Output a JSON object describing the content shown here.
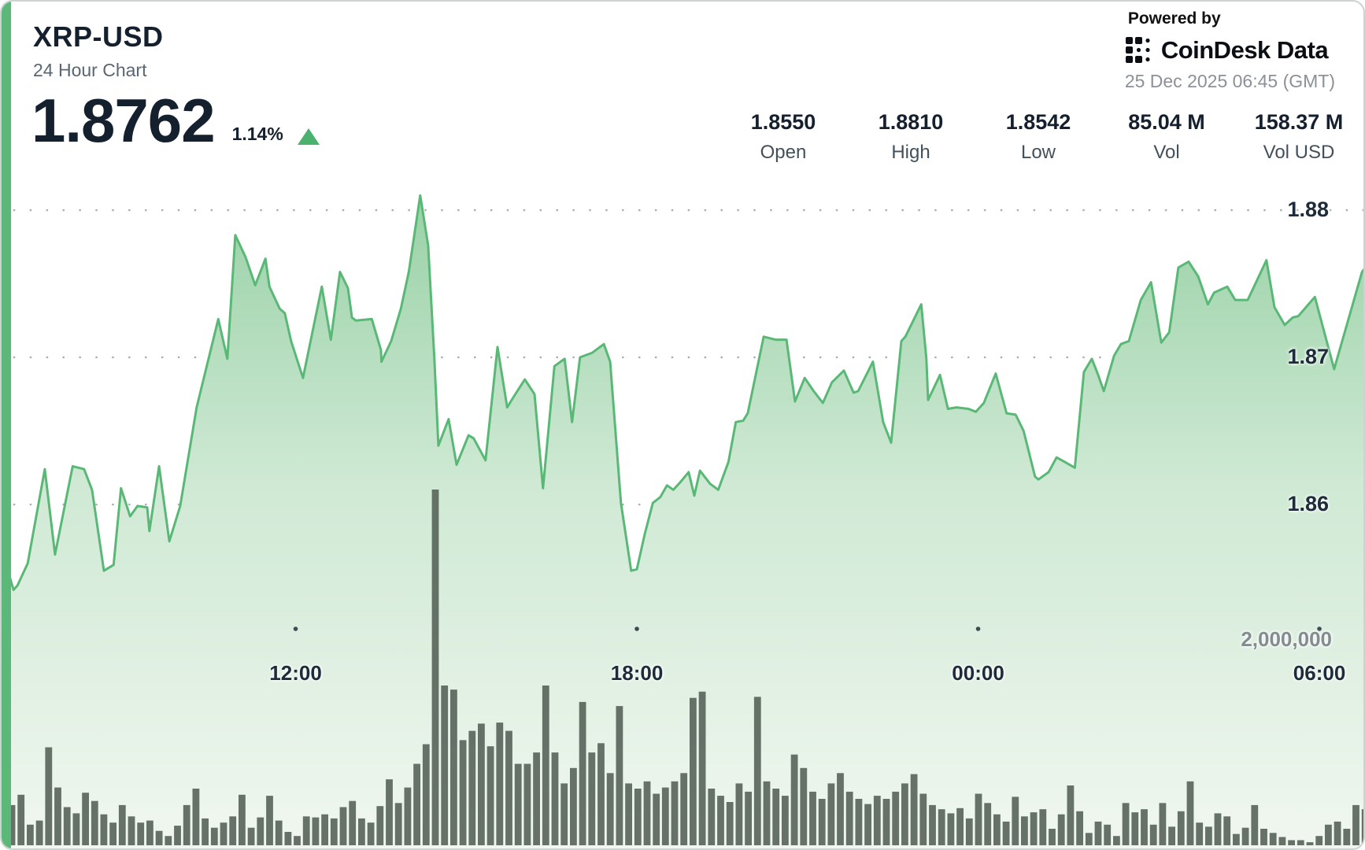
{
  "header": {
    "symbol": "XRP-USD",
    "subtitle": "24 Hour Chart",
    "price": "1.8762",
    "change_percent": "1.14%",
    "change_direction": "up"
  },
  "provider": {
    "powered_by": "Powered by",
    "name": "CoinDesk Data",
    "timestamp": "25 Dec 2025 06:45 (GMT)"
  },
  "stats": [
    {
      "value": "1.8550",
      "label": "Open"
    },
    {
      "value": "1.8810",
      "label": "High"
    },
    {
      "value": "1.8542",
      "label": "Low"
    },
    {
      "value": "85.04 M",
      "label": "Vol"
    },
    {
      "value": "158.37 M",
      "label": "Vol USD"
    }
  ],
  "chart_data": {
    "type": "area+bar",
    "title": "XRP-USD 24 Hour Chart",
    "x_axis": {
      "unit": "time",
      "span_hours": 24,
      "tick_labels": [
        "12:00",
        "18:00",
        "00:00",
        "06:00"
      ],
      "tick_hours": [
        5.17,
        11.17,
        17.17,
        23.17
      ]
    },
    "price_axis": {
      "gridlines": [
        1.88,
        1.87,
        1.86
      ],
      "labels": [
        "1.88",
        "1.87",
        "1.86"
      ]
    },
    "volume_axis": {
      "gridline_millions": 2,
      "label": "2,000,000"
    },
    "open": 1.855,
    "high": 1.881,
    "low": 1.8542,
    "last": 1.8762,
    "volume": "85.04 M",
    "volume_usd": "158.37 M",
    "legend": "none",
    "grid": "dotted",
    "price_points": [
      [
        0.15,
        1.855
      ],
      [
        0.21,
        1.8542
      ],
      [
        0.28,
        1.8545
      ],
      [
        0.46,
        1.856
      ],
      [
        0.76,
        1.8624
      ],
      [
        0.94,
        1.8566
      ],
      [
        1.25,
        1.8626
      ],
      [
        1.45,
        1.8624
      ],
      [
        1.59,
        1.861
      ],
      [
        1.8,
        1.8555
      ],
      [
        1.97,
        1.8559
      ],
      [
        2.1,
        1.8611
      ],
      [
        2.26,
        1.8592
      ],
      [
        2.39,
        1.8599
      ],
      [
        2.56,
        1.8598
      ],
      [
        2.6,
        1.8582
      ],
      [
        2.77,
        1.8626
      ],
      [
        2.95,
        1.8575
      ],
      [
        3.14,
        1.8599
      ],
      [
        3.43,
        1.8666
      ],
      [
        3.81,
        1.8726
      ],
      [
        3.97,
        1.8699
      ],
      [
        4.11,
        1.8783
      ],
      [
        4.29,
        1.8768
      ],
      [
        4.46,
        1.8749
      ],
      [
        4.64,
        1.8767
      ],
      [
        4.71,
        1.8748
      ],
      [
        4.89,
        1.8733
      ],
      [
        4.98,
        1.873
      ],
      [
        5.09,
        1.8711
      ],
      [
        5.3,
        1.8686
      ],
      [
        5.63,
        1.8748
      ],
      [
        5.79,
        1.8712
      ],
      [
        5.95,
        1.8758
      ],
      [
        6.09,
        1.8747
      ],
      [
        6.16,
        1.8727
      ],
      [
        6.23,
        1.8725
      ],
      [
        6.51,
        1.8726
      ],
      [
        6.67,
        1.8705
      ],
      [
        6.68,
        1.8697
      ],
      [
        6.85,
        1.8711
      ],
      [
        7.02,
        1.8733
      ],
      [
        7.16,
        1.8758
      ],
      [
        7.36,
        1.881
      ],
      [
        7.5,
        1.8776
      ],
      [
        7.61,
        1.8699
      ],
      [
        7.68,
        1.864
      ],
      [
        7.86,
        1.8658
      ],
      [
        8.0,
        1.8627
      ],
      [
        8.21,
        1.8647
      ],
      [
        8.3,
        1.8645
      ],
      [
        8.51,
        1.863
      ],
      [
        8.72,
        1.8707
      ],
      [
        8.89,
        1.8666
      ],
      [
        9.0,
        1.8673
      ],
      [
        9.2,
        1.8685
      ],
      [
        9.37,
        1.8675
      ],
      [
        9.52,
        1.8611
      ],
      [
        9.72,
        1.8694
      ],
      [
        9.9,
        1.8699
      ],
      [
        10.03,
        1.8656
      ],
      [
        10.17,
        1.87
      ],
      [
        10.38,
        1.8703
      ],
      [
        10.59,
        1.8709
      ],
      [
        10.7,
        1.8697
      ],
      [
        10.89,
        1.8601
      ],
      [
        11.07,
        1.8555
      ],
      [
        11.17,
        1.8556
      ],
      [
        11.31,
        1.858
      ],
      [
        11.45,
        1.8601
      ],
      [
        11.58,
        1.8605
      ],
      [
        11.7,
        1.8613
      ],
      [
        11.81,
        1.861
      ],
      [
        11.93,
        1.8615
      ],
      [
        12.08,
        1.8622
      ],
      [
        12.18,
        1.8606
      ],
      [
        12.28,
        1.8623
      ],
      [
        12.46,
        1.8614
      ],
      [
        12.6,
        1.861
      ],
      [
        12.78,
        1.8629
      ],
      [
        12.91,
        1.8656
      ],
      [
        13.04,
        1.8657
      ],
      [
        13.12,
        1.8662
      ],
      [
        13.4,
        1.8714
      ],
      [
        13.61,
        1.8712
      ],
      [
        13.8,
        1.8712
      ],
      [
        13.95,
        1.867
      ],
      [
        14.12,
        1.8686
      ],
      [
        14.28,
        1.8677
      ],
      [
        14.44,
        1.8669
      ],
      [
        14.6,
        1.8683
      ],
      [
        14.81,
        1.8691
      ],
      [
        14.98,
        1.8676
      ],
      [
        15.06,
        1.8677
      ],
      [
        15.32,
        1.8697
      ],
      [
        15.5,
        1.8656
      ],
      [
        15.64,
        1.8642
      ],
      [
        15.82,
        1.8711
      ],
      [
        15.89,
        1.8714
      ],
      [
        16.17,
        1.8736
      ],
      [
        16.26,
        1.8699
      ],
      [
        16.29,
        1.8671
      ],
      [
        16.5,
        1.8688
      ],
      [
        16.64,
        1.8665
      ],
      [
        16.79,
        1.8666
      ],
      [
        17.0,
        1.8665
      ],
      [
        17.13,
        1.8663
      ],
      [
        17.27,
        1.8669
      ],
      [
        17.48,
        1.8689
      ],
      [
        17.67,
        1.8662
      ],
      [
        17.83,
        1.8661
      ],
      [
        17.97,
        1.865
      ],
      [
        18.17,
        1.8619
      ],
      [
        18.23,
        1.8617
      ],
      [
        18.41,
        1.8622
      ],
      [
        18.55,
        1.8632
      ],
      [
        18.69,
        1.8629
      ],
      [
        18.87,
        1.8625
      ],
      [
        19.03,
        1.869
      ],
      [
        19.17,
        1.8699
      ],
      [
        19.28,
        1.8688
      ],
      [
        19.38,
        1.8677
      ],
      [
        19.56,
        1.8701
      ],
      [
        19.68,
        1.8709
      ],
      [
        19.82,
        1.8711
      ],
      [
        20.03,
        1.8739
      ],
      [
        20.21,
        1.8751
      ],
      [
        20.39,
        1.871
      ],
      [
        20.53,
        1.8717
      ],
      [
        20.69,
        1.8761
      ],
      [
        20.87,
        1.8765
      ],
      [
        21.04,
        1.8755
      ],
      [
        21.21,
        1.8736
      ],
      [
        21.32,
        1.8744
      ],
      [
        21.55,
        1.8748
      ],
      [
        21.69,
        1.8739
      ],
      [
        21.91,
        1.8739
      ],
      [
        22.24,
        1.8766
      ],
      [
        22.38,
        1.8734
      ],
      [
        22.56,
        1.8722
      ],
      [
        22.7,
        1.8727
      ],
      [
        22.8,
        1.8728
      ],
      [
        23.09,
        1.8741
      ],
      [
        23.43,
        1.8692
      ],
      [
        23.92,
        1.8758
      ],
      [
        24.0,
        1.8762
      ]
    ],
    "volume_bars_millions": [
      0.39,
      0.49,
      0.2,
      0.24,
      0.95,
      0.56,
      0.37,
      0.31,
      0.51,
      0.43,
      0.3,
      0.22,
      0.39,
      0.28,
      0.22,
      0.24,
      0.14,
      0.09,
      0.19,
      0.39,
      0.55,
      0.26,
      0.17,
      0.22,
      0.28,
      0.49,
      0.17,
      0.27,
      0.48,
      0.24,
      0.13,
      0.09,
      0.28,
      0.27,
      0.3,
      0.26,
      0.37,
      0.43,
      0.26,
      0.22,
      0.38,
      0.64,
      0.41,
      0.56,
      0.79,
      0.98,
      3.45,
      1.55,
      1.51,
      1.02,
      1.11,
      1.18,
      0.96,
      1.19,
      1.11,
      0.79,
      0.79,
      0.9,
      1.55,
      0.9,
      0.6,
      0.75,
      1.39,
      0.9,
      0.99,
      0.7,
      1.35,
      0.6,
      0.55,
      0.62,
      0.5,
      0.56,
      0.62,
      0.7,
      1.43,
      1.49,
      0.55,
      0.48,
      0.42,
      0.6,
      0.52,
      1.44,
      0.62,
      0.55,
      0.48,
      0.88,
      0.75,
      0.52,
      0.45,
      0.6,
      0.7,
      0.52,
      0.45,
      0.4,
      0.48,
      0.45,
      0.52,
      0.6,
      0.69,
      0.5,
      0.39,
      0.35,
      0.31,
      0.36,
      0.26,
      0.5,
      0.41,
      0.3,
      0.23,
      0.47,
      0.28,
      0.32,
      0.35,
      0.16,
      0.3,
      0.58,
      0.33,
      0.12,
      0.23,
      0.2,
      0.09,
      0.41,
      0.32,
      0.35,
      0.2,
      0.41,
      0.18,
      0.33,
      0.62,
      0.22,
      0.18,
      0.31,
      0.28,
      0.11,
      0.17,
      0.39,
      0.16,
      0.12,
      0.08,
      0.05,
      0.05,
      0.03,
      0.09,
      0.2,
      0.23,
      0.16,
      0.39,
      0.35
    ],
    "colors": {
      "accent": "#5cb878",
      "line": "#5ab877",
      "area_top": "#96d0a4",
      "area_mid": "#cfe9d4",
      "area_bottom": "#f1f7f0",
      "bar": "#5a665c",
      "grid_dot": "#97a0a5",
      "vol_grid_dot": "#a3aba6",
      "tick_dot": "#3f4a54",
      "up": "#4cb06f"
    }
  }
}
